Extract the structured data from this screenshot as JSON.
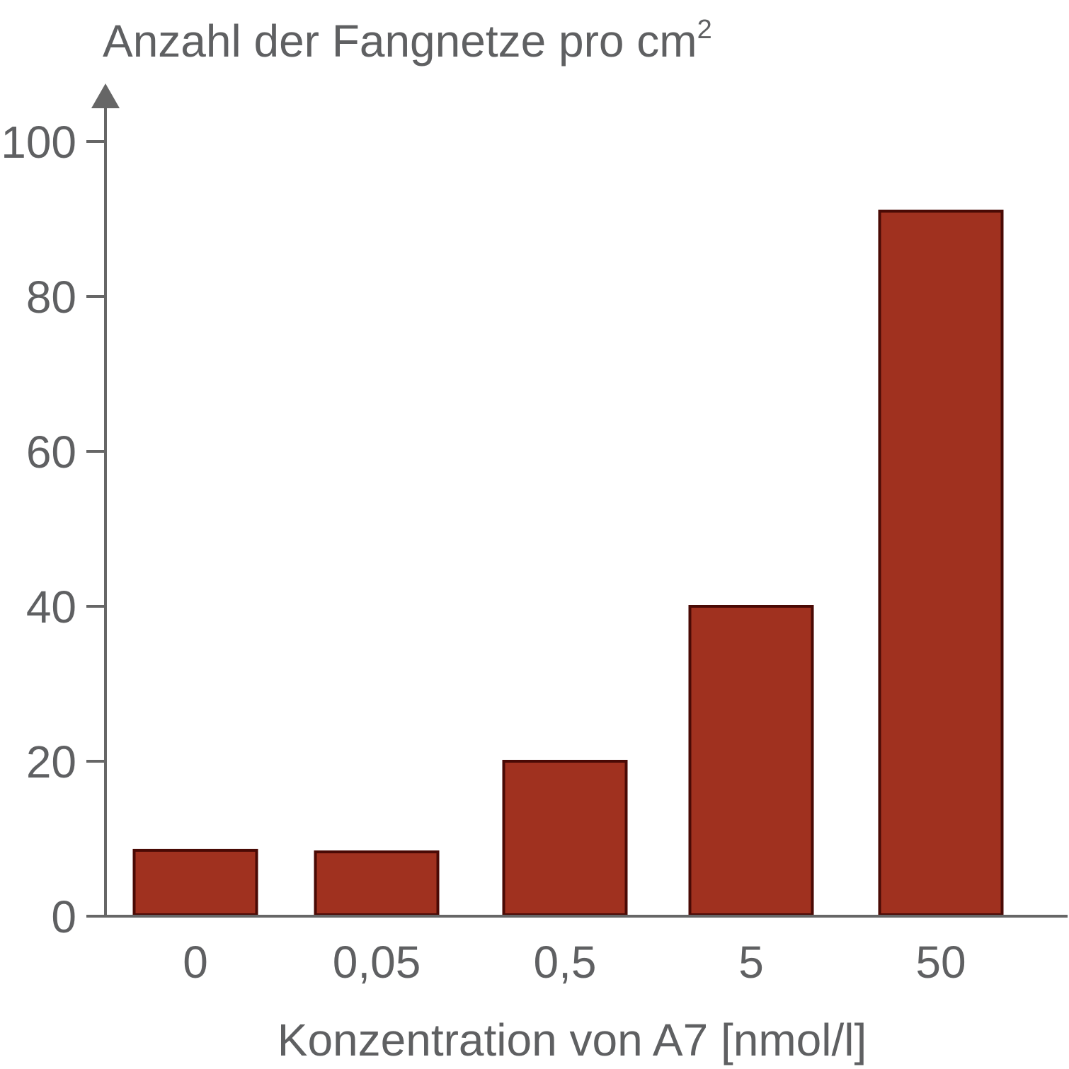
{
  "chart_data": {
    "type": "bar",
    "title": "",
    "ylabel": "Anzahl der Fangnetze pro cm",
    "ylabel_superscript": "2",
    "xlabel": "Konzentration von A7 [nmol/l]",
    "categories": [
      "0",
      "0,05",
      "0,5",
      "5",
      "50"
    ],
    "values": [
      8.5,
      8.3,
      20,
      40,
      91
    ],
    "ylim": [
      0,
      100
    ],
    "yticks": [
      0,
      20,
      40,
      60,
      80,
      100
    ],
    "ytick_labels": [
      "0",
      "20",
      "40",
      "60",
      "80",
      "100"
    ],
    "grid": false,
    "legend": "none",
    "bar_color": "#a0311f",
    "bar_edge_color": "#4a0a05",
    "axis_color": "#666666",
    "text_color": "#5f6062"
  }
}
